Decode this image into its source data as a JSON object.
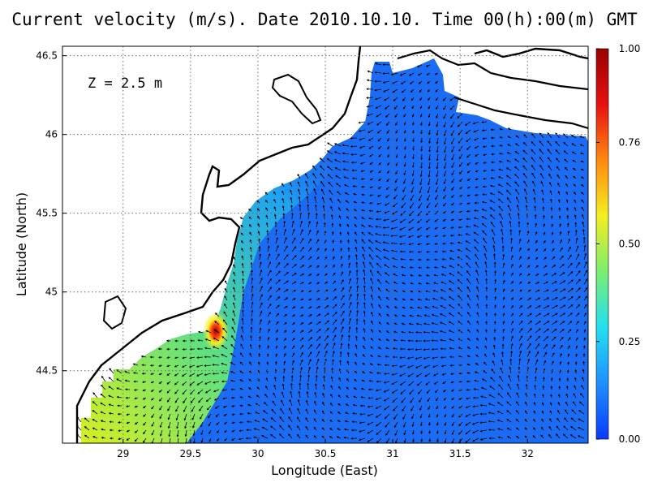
{
  "title": "Current velocity (m/s). Date 2010.10.10. Time 00(h):00(m) GMT",
  "depth_label": "Z = 2.5 m",
  "x_axis": {
    "label": "Longitude (East)",
    "ticks": [
      "29",
      "29.5",
      "30",
      "30.5",
      "31",
      "31.5",
      "32"
    ],
    "range": [
      28.55,
      32.45
    ]
  },
  "y_axis": {
    "label": "Latitude (North)",
    "ticks": [
      "44.5",
      "45",
      "45.5",
      "46",
      "46.5"
    ],
    "range": [
      44.04,
      46.56
    ]
  },
  "colorbar": {
    "ticks": [
      "0.00",
      "0.25",
      "0.50",
      "0.76",
      "1.00"
    ],
    "range": [
      0.0,
      1.0
    ],
    "colors": [
      "#0a3aff",
      "#1f8fff",
      "#22e0f0",
      "#7aee70",
      "#f4ee20",
      "#ff8a10",
      "#e81010",
      "#9a0000"
    ]
  },
  "map": {
    "sea_color": "#1b6cf2",
    "land_color": "#ffffff",
    "coast_color": "#000000",
    "grid": "dotted"
  }
}
